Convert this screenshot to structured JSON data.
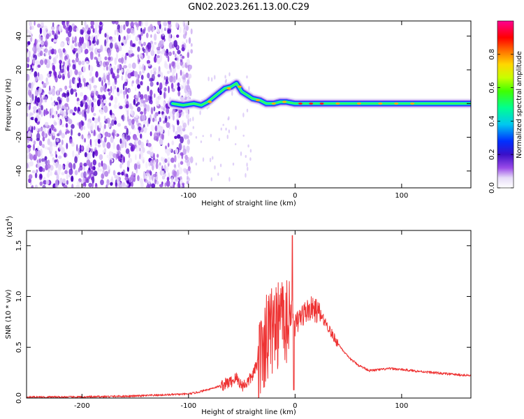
{
  "title": "GN02.2023.261.13.00.C29",
  "chart_data": [
    {
      "type": "heatmap",
      "xlabel": "Height of straight line (km)",
      "ylabel": "Frequency (Hz)",
      "xlim": [
        -252,
        165
      ],
      "ylim": [
        -50,
        49
      ],
      "xticks": [
        -200,
        -100,
        0,
        100
      ],
      "yticks": [
        -40,
        -20,
        0,
        20,
        40
      ],
      "colorbar": {
        "label": "Normalized spectral amplitude",
        "range": [
          0.0,
          1.0
        ],
        "ticks": [
          "0.0",
          "0.2",
          "0.4",
          "0.6",
          "0.8"
        ],
        "colors": [
          "#ffffff",
          "#e0d8f8",
          "#8a2be2",
          "#4b0082",
          "#0000ff",
          "#00c8ff",
          "#00ff80",
          "#c8ff00",
          "#ffd700",
          "#ff6a00",
          "#ff0000",
          "#ff0080"
        ]
      },
      "features": {
        "noise_region_x": [
          -252,
          -100
        ],
        "signal_ridge": [
          [
            -115,
            0
          ],
          [
            -105,
            -1
          ],
          [
            -95,
            0
          ],
          [
            -88,
            -1
          ],
          [
            -82,
            1
          ],
          [
            -78,
            3
          ],
          [
            -72,
            6
          ],
          [
            -66,
            9
          ],
          [
            -60,
            10
          ],
          [
            -55,
            12
          ],
          [
            -50,
            7
          ],
          [
            -45,
            5
          ],
          [
            -40,
            3
          ],
          [
            -33,
            2
          ],
          [
            -27,
            0
          ],
          [
            -20,
            0
          ],
          [
            -14,
            1
          ],
          [
            -8,
            1
          ],
          [
            0,
            0
          ],
          [
            20,
            0
          ],
          [
            60,
            0
          ],
          [
            100,
            0
          ],
          [
            140,
            0
          ],
          [
            165,
            0
          ]
        ]
      }
    },
    {
      "type": "line",
      "xlabel": "Height of straight line (km)",
      "ylabel": "SNR (10 * v/v)",
      "ylabel_multiplier": "(x10",
      "ylabel_exponent": "4",
      "ylabel_close": ")",
      "xlim": [
        -252,
        165
      ],
      "ylim": [
        0,
        1.65
      ],
      "xticks": [
        -200,
        -100,
        0,
        100
      ],
      "yticks": [
        0.0,
        0.5,
        1.0,
        1.5
      ],
      "color": "#ee3333",
      "series": [
        {
          "x": [
            -252,
            -200,
            -150,
            -100,
            -90,
            -80,
            -70,
            -60,
            -55,
            -50,
            -45,
            -40,
            -35,
            -30,
            -25,
            -20,
            -15,
            -10,
            -5,
            -2,
            0,
            5,
            10,
            15,
            20,
            25,
            30,
            35,
            40,
            50,
            60,
            70,
            80,
            90,
            100,
            120,
            140,
            165
          ],
          "y": [
            0.01,
            0.01,
            0.02,
            0.04,
            0.06,
            0.09,
            0.12,
            0.16,
            0.2,
            0.12,
            0.15,
            0.22,
            0.35,
            0.48,
            0.62,
            0.7,
            0.75,
            0.78,
            0.82,
            0.86,
            0.7,
            0.8,
            0.85,
            0.88,
            0.86,
            0.8,
            0.72,
            0.62,
            0.54,
            0.4,
            0.32,
            0.27,
            0.28,
            0.29,
            0.28,
            0.26,
            0.24,
            0.22
          ]
        }
      ]
    }
  ]
}
